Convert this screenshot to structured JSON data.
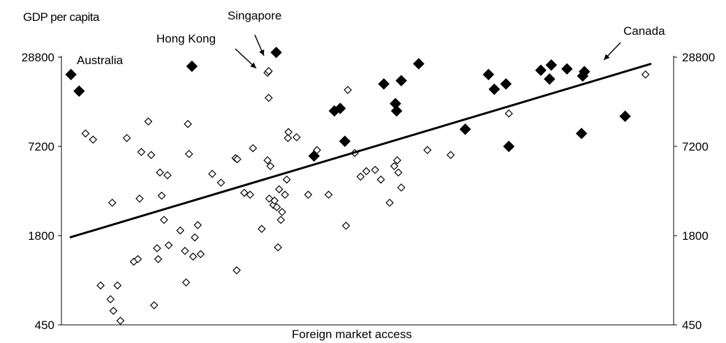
{
  "chart_data": {
    "type": "scatter",
    "ylabel": "GDP per capita",
    "xlabel": "Foreign market access",
    "y_scale": "log",
    "ylim": [
      450,
      28800
    ],
    "yticks": [
      "450",
      "1800",
      "7200",
      "28800"
    ],
    "xlim": [
      0,
      100
    ],
    "legend": "none",
    "grid": false,
    "annotations": [
      {
        "text": "Australia",
        "arrow": false
      },
      {
        "text": "Hong Kong",
        "arrow": true
      },
      {
        "text": "Singapore",
        "arrow": true
      },
      {
        "text": "Canada",
        "arrow": true
      }
    ],
    "trendline": {
      "x": [
        0,
        100
      ],
      "y": [
        1750,
        26000
      ]
    },
    "series": [
      {
        "marker": "filled-diamond",
        "color": "#000000",
        "points": [
          [
            0.2,
            22000
          ],
          [
            1.6,
            17000
          ],
          [
            21.0,
            25000
          ],
          [
            35.5,
            31000
          ],
          [
            42.0,
            6200
          ],
          [
            45.5,
            12500
          ],
          [
            46.5,
            13000
          ],
          [
            47.3,
            7800
          ],
          [
            54.0,
            19000
          ],
          [
            56.0,
            14000
          ],
          [
            56.2,
            12500
          ],
          [
            57.0,
            20000
          ],
          [
            60.0,
            26000
          ],
          [
            68.0,
            9400
          ],
          [
            72.0,
            22000
          ],
          [
            73.0,
            17500
          ],
          [
            75.0,
            19000
          ],
          [
            75.5,
            7200
          ],
          [
            81.0,
            23500
          ],
          [
            82.5,
            20500
          ],
          [
            82.8,
            25500
          ],
          [
            85.5,
            24000
          ],
          [
            88.0,
            8800
          ],
          [
            88.2,
            21500
          ],
          [
            88.5,
            23000
          ],
          [
            95.5,
            11500
          ]
        ]
      },
      {
        "marker": "hollow-diamond",
        "color": "#000000",
        "points": [
          [
            2.7,
            8800
          ],
          [
            4.0,
            8000
          ],
          [
            5.3,
            830
          ],
          [
            7.0,
            670
          ],
          [
            7.5,
            560
          ],
          [
            8.2,
            830
          ],
          [
            7.3,
            3000
          ],
          [
            8.7,
            480
          ],
          [
            9.8,
            8200
          ],
          [
            11.0,
            1200
          ],
          [
            11.7,
            1250
          ],
          [
            12.0,
            3200
          ],
          [
            12.3,
            6600
          ],
          [
            13.5,
            10600
          ],
          [
            14.0,
            6300
          ],
          [
            14.5,
            610
          ],
          [
            15.0,
            1480
          ],
          [
            15.2,
            1250
          ],
          [
            15.5,
            4800
          ],
          [
            15.8,
            3350
          ],
          [
            16.2,
            2300
          ],
          [
            16.8,
            4600
          ],
          [
            17.0,
            1550
          ],
          [
            19.0,
            1950
          ],
          [
            19.8,
            1420
          ],
          [
            20.5,
            6400
          ],
          [
            20.3,
            10200
          ],
          [
            20.0,
            870
          ],
          [
            21.2,
            1300
          ],
          [
            21.5,
            1750
          ],
          [
            22.0,
            2120
          ],
          [
            22.5,
            1350
          ],
          [
            24.5,
            4700
          ],
          [
            26.0,
            4100
          ],
          [
            28.5,
            6000
          ],
          [
            28.8,
            5900
          ],
          [
            28.7,
            1050
          ],
          [
            30.0,
            3500
          ],
          [
            31.0,
            3400
          ],
          [
            31.5,
            7000
          ],
          [
            33.0,
            2000
          ],
          [
            34.0,
            5800
          ],
          [
            34.3,
            3200
          ],
          [
            34.5,
            5300
          ],
          [
            35.0,
            2900
          ],
          [
            35.2,
            3100
          ],
          [
            35.6,
            2800
          ],
          [
            35.8,
            1500
          ],
          [
            36.0,
            3700
          ],
          [
            36.3,
            2300
          ],
          [
            37.0,
            3400
          ],
          [
            37.3,
            4300
          ],
          [
            36.5,
            2600
          ],
          [
            37.5,
            8200
          ],
          [
            37.6,
            9000
          ],
          [
            39.0,
            8300
          ],
          [
            41.0,
            3400
          ],
          [
            42.5,
            6800
          ],
          [
            44.5,
            3400
          ],
          [
            47.8,
            17300
          ],
          [
            47.5,
            2100
          ],
          [
            49.0,
            6500
          ],
          [
            50.0,
            4500
          ],
          [
            51.0,
            4900
          ],
          [
            52.5,
            5000
          ],
          [
            53.5,
            4300
          ],
          [
            55.0,
            3000
          ],
          [
            55.8,
            5300
          ],
          [
            56.3,
            5800
          ],
          [
            56.5,
            4800
          ],
          [
            57.0,
            3800
          ],
          [
            61.5,
            6800
          ],
          [
            65.5,
            6300
          ],
          [
            75.5,
            12000
          ],
          [
            99.0,
            22000
          ],
          [
            34.2,
            15300
          ],
          [
            34.0,
            22600
          ],
          [
            34.2,
            23200
          ]
        ]
      }
    ]
  }
}
